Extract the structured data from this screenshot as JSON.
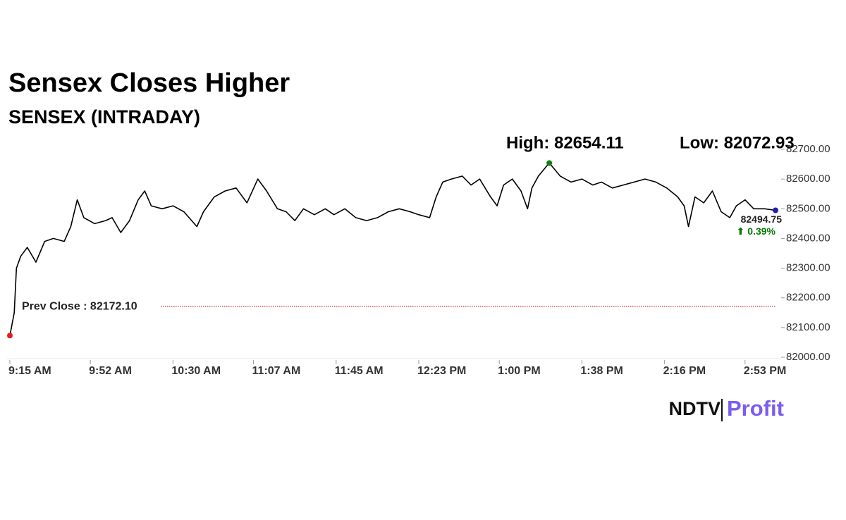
{
  "chart_data": {
    "type": "line",
    "title": "Sensex Closes Higher",
    "subtitle": "SENSEX (INTRADAY)",
    "high_label": "High: 82654.11",
    "low_label": "Low: 82072.93",
    "prev_close": 82172.1,
    "prev_close_label": "Prev Close : 82172.10",
    "prev_close_color": "#cc0000",
    "last_label": "82494.75",
    "change_label": "⬆ 0.39%",
    "change_color": "#0a7a0a",
    "color": "#000000",
    "low_marker_color": "#e02020",
    "high_marker_color": "#108010",
    "last_marker_color": "#2020b0",
    "x": [
      0,
      2,
      3,
      5,
      8,
      12,
      16,
      20,
      25,
      28,
      31,
      34,
      39,
      44,
      47,
      51,
      55,
      59,
      62,
      65,
      70,
      75,
      80,
      86,
      89,
      94,
      99,
      104,
      109,
      114,
      118,
      123,
      127,
      131,
      135,
      140,
      145,
      149,
      154,
      159,
      164,
      169,
      174,
      179,
      184,
      188,
      193,
      196,
      199,
      203,
      208,
      212,
      216,
      221,
      224,
      227,
      231,
      235,
      238,
      240,
      243,
      248,
      253,
      258,
      263,
      268,
      272,
      277,
      282,
      287,
      292,
      297,
      302,
      307,
      310,
      312,
      315,
      319,
      323,
      327,
      331,
      334,
      338,
      342,
      347,
      352
    ],
    "values": [
      82072.93,
      82150,
      82300,
      82340,
      82370,
      82320,
      82390,
      82400,
      82390,
      82440,
      82530,
      82470,
      82450,
      82460,
      82470,
      82420,
      82460,
      82530,
      82560,
      82510,
      82500,
      82510,
      82490,
      82440,
      82490,
      82540,
      82560,
      82570,
      82520,
      82600,
      82560,
      82500,
      82490,
      82460,
      82500,
      82480,
      82500,
      82480,
      82500,
      82470,
      82460,
      82470,
      82490,
      82500,
      82490,
      82480,
      82470,
      82540,
      82590,
      82600,
      82610,
      82580,
      82600,
      82540,
      82510,
      82580,
      82600,
      82560,
      82500,
      82570,
      82610,
      82654.11,
      82610,
      82590,
      82600,
      82580,
      82590,
      82570,
      82580,
      82590,
      82600,
      82590,
      82570,
      82540,
      82510,
      82440,
      82540,
      82520,
      82560,
      82490,
      82470,
      82510,
      82530,
      82500,
      82500,
      82494.75
    ],
    "xlim": [
      0,
      352
    ],
    "xticks": [
      {
        "value": 0,
        "label": "9:15 AM"
      },
      {
        "value": 37,
        "label": "9:52 AM"
      },
      {
        "value": 75,
        "label": "10:30 AM"
      },
      {
        "value": 112,
        "label": "11:07 AM"
      },
      {
        "value": 150,
        "label": "11:45 AM"
      },
      {
        "value": 188,
        "label": "12:23 PM"
      },
      {
        "value": 225,
        "label": "1:00 PM"
      },
      {
        "value": 263,
        "label": "1:38 PM"
      },
      {
        "value": 301,
        "label": "2:16 PM"
      },
      {
        "value": 338,
        "label": "2:53 PM"
      }
    ],
    "ylim": [
      82000,
      82700
    ],
    "yticks": [
      {
        "value": 82000,
        "label": "82000.00"
      },
      {
        "value": 82100,
        "label": "82100.00"
      },
      {
        "value": 82200,
        "label": "82200.00"
      },
      {
        "value": 82300,
        "label": "82300.00"
      },
      {
        "value": 82400,
        "label": "82400.00"
      },
      {
        "value": 82500,
        "label": "82500.00"
      },
      {
        "value": 82600,
        "label": "82600.00"
      },
      {
        "value": 82700,
        "label": "82700.00"
      }
    ],
    "logo": {
      "brand": "NDTV",
      "product": "Profit"
    }
  }
}
